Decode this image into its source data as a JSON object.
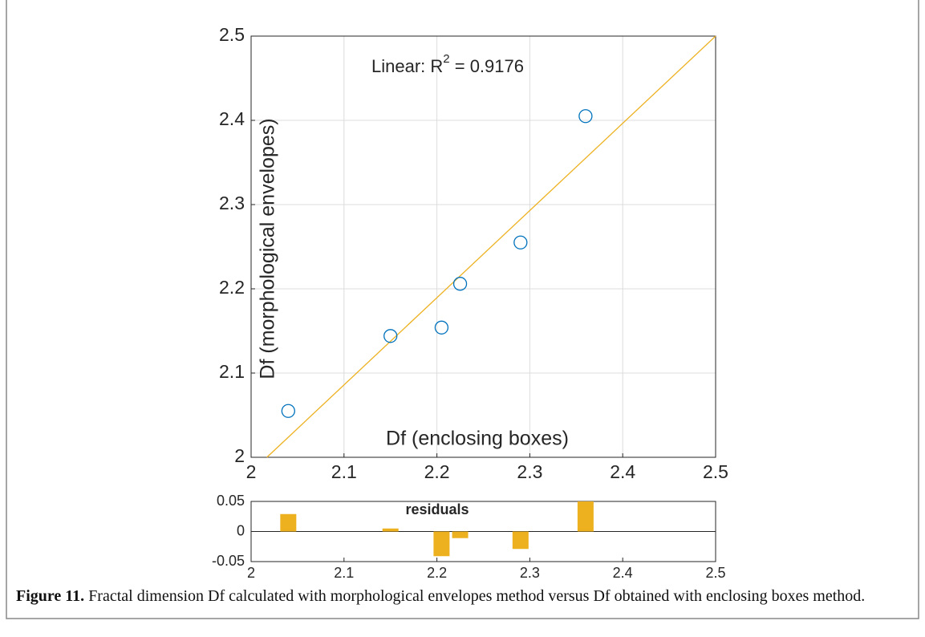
{
  "chart_data": [
    {
      "type": "scatter",
      "x": [
        2.04,
        2.15,
        2.205,
        2.225,
        2.29,
        2.36
      ],
      "values": [
        2.055,
        2.144,
        2.154,
        2.206,
        2.255,
        2.405
      ],
      "color": "#0072bd",
      "fit_line": {
        "x": [
          2.017,
          2.5
        ],
        "y": [
          2.0,
          2.5
        ],
        "color": "#edb120"
      },
      "annotation": {
        "text": "Linear: R",
        "sup": "2",
        "rest": " = 0.9176"
      },
      "x_label": "Df (enclosing boxes)",
      "y_label": "Df (morphological envelopes)",
      "xlim": [
        2,
        2.5
      ],
      "xticks": [
        2,
        2.1,
        2.2,
        2.3,
        2.4,
        2.5
      ],
      "ylim": [
        2,
        2.5
      ],
      "yticks": [
        2,
        2.1,
        2.2,
        2.3,
        2.4,
        2.5
      ],
      "grid": true
    },
    {
      "type": "bar",
      "x": [
        2.04,
        2.15,
        2.205,
        2.225,
        2.29,
        2.36
      ],
      "values": [
        0.029,
        0.005,
        -0.041,
        -0.011,
        -0.029,
        0.05
      ],
      "color": "#edb120",
      "annotation": "residuals",
      "xlim": [
        2,
        2.5
      ],
      "xticks": [
        2,
        2.1,
        2.2,
        2.3,
        2.4,
        2.5
      ],
      "ylim": [
        -0.05,
        0.05
      ],
      "yticks": [
        -0.05,
        0,
        0.05
      ],
      "grid": false
    }
  ],
  "caption": {
    "label": "Figure 11.",
    "text": " Fractal dimension Df calculated with morphological envelopes method versus Df obtained with enclosing boxes method."
  }
}
